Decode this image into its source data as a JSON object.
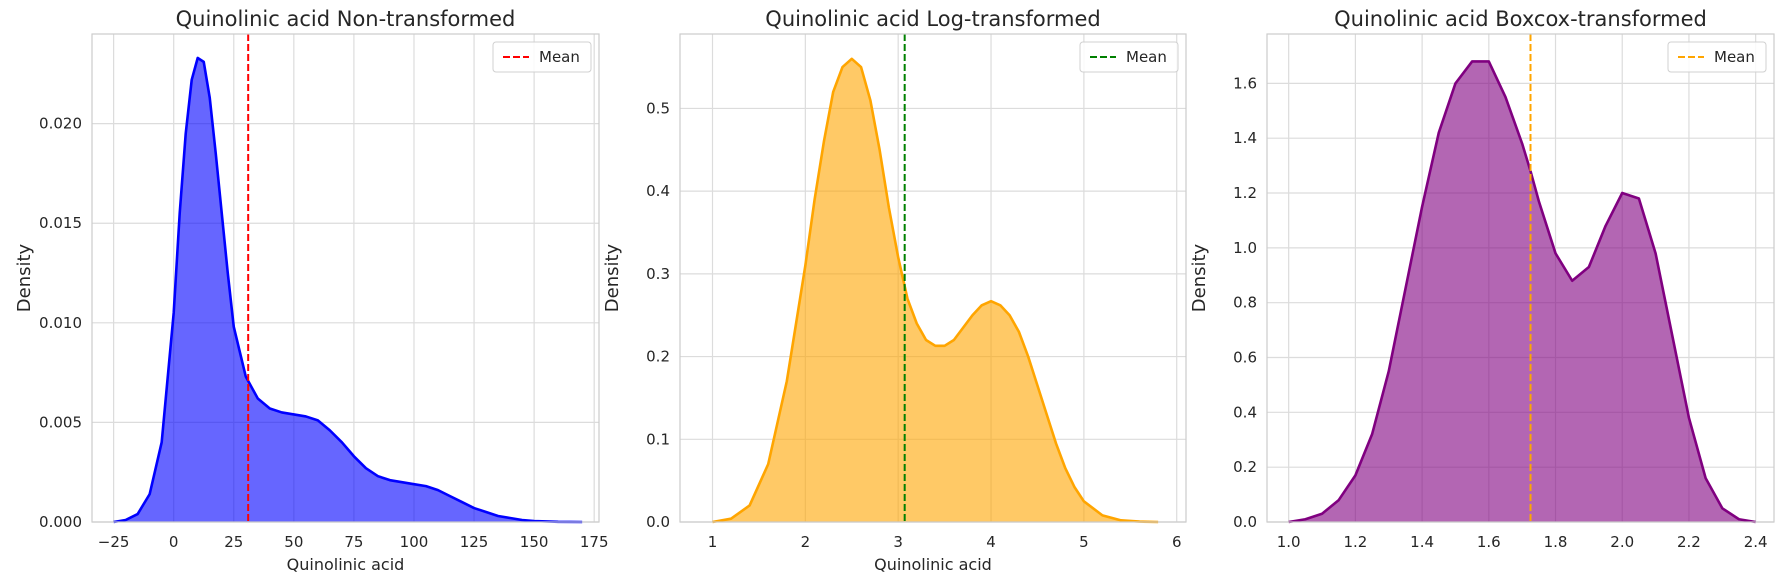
{
  "chart_data": [
    {
      "type": "area",
      "title": "Quinolinic acid Non-transformed",
      "xlabel": "Quinolinic acid",
      "ylabel": "Density",
      "xlim": [
        -34,
        177
      ],
      "ylim": [
        0,
        0.0245
      ],
      "xticks": [
        -25,
        0,
        25,
        50,
        75,
        100,
        125,
        150,
        175
      ],
      "xtick_labels": [
        "−25",
        "0",
        "25",
        "50",
        "75",
        "100",
        "125",
        "150",
        "175"
      ],
      "yticks": [
        0,
        0.005,
        0.01,
        0.015,
        0.02
      ],
      "ytick_labels": [
        "0.000",
        "0.005",
        "0.010",
        "0.015",
        "0.020"
      ],
      "grid": true,
      "legend": "top-right",
      "series": [
        {
          "kind": "kde",
          "color": "#0000ff",
          "x": [
            -25,
            -20,
            -15,
            -10,
            -5,
            0,
            2.5,
            5,
            7.5,
            10,
            12.5,
            15,
            17.5,
            20,
            22.5,
            25,
            30,
            35,
            40,
            45,
            50,
            55,
            60,
            65,
            70,
            75,
            80,
            85,
            90,
            95,
            100,
            105,
            110,
            115,
            120,
            125,
            130,
            135,
            140,
            145,
            150,
            160,
            170
          ],
          "y": [
            0,
            0.0001,
            0.0004,
            0.0014,
            0.004,
            0.0105,
            0.0155,
            0.0195,
            0.0222,
            0.0233,
            0.0231,
            0.0213,
            0.0185,
            0.0155,
            0.0125,
            0.0098,
            0.0073,
            0.0062,
            0.0057,
            0.0055,
            0.0054,
            0.0053,
            0.0051,
            0.0046,
            0.004,
            0.0033,
            0.0027,
            0.0023,
            0.0021,
            0.002,
            0.0019,
            0.0018,
            0.0016,
            0.0013,
            0.001,
            0.0007,
            0.0005,
            0.0003,
            0.0002,
            0.0001,
            5e-05,
            1e-05,
            0
          ]
        }
      ],
      "mean": {
        "label": "Mean",
        "x": 31,
        "color": "#ff0000"
      }
    },
    {
      "type": "area",
      "title": "Quinolinic acid Log-transformed",
      "xlabel": "Quinolinic acid",
      "ylabel": "Density",
      "xlim": [
        0.65,
        6.1
      ],
      "ylim": [
        0,
        0.59
      ],
      "xticks": [
        1,
        2,
        3,
        4,
        5,
        6
      ],
      "xtick_labels": [
        "1",
        "2",
        "3",
        "4",
        "5",
        "6"
      ],
      "yticks": [
        0,
        0.1,
        0.2,
        0.3,
        0.4,
        0.5
      ],
      "ytick_labels": [
        "0.0",
        "0.1",
        "0.2",
        "0.3",
        "0.4",
        "0.5"
      ],
      "grid": true,
      "legend": "top-right",
      "series": [
        {
          "kind": "kde",
          "color": "#ffa500",
          "x": [
            1.0,
            1.2,
            1.4,
            1.6,
            1.8,
            1.9,
            2.0,
            2.1,
            2.2,
            2.3,
            2.4,
            2.5,
            2.6,
            2.7,
            2.8,
            2.9,
            3.0,
            3.1,
            3.2,
            3.3,
            3.4,
            3.5,
            3.6,
            3.7,
            3.8,
            3.9,
            4.0,
            4.1,
            4.2,
            4.3,
            4.4,
            4.5,
            4.6,
            4.7,
            4.8,
            4.9,
            5.0,
            5.2,
            5.4,
            5.6,
            5.8
          ],
          "y": [
            0.0,
            0.004,
            0.02,
            0.07,
            0.17,
            0.24,
            0.31,
            0.39,
            0.46,
            0.52,
            0.55,
            0.56,
            0.55,
            0.51,
            0.45,
            0.38,
            0.32,
            0.27,
            0.24,
            0.22,
            0.213,
            0.213,
            0.22,
            0.235,
            0.25,
            0.262,
            0.267,
            0.262,
            0.25,
            0.23,
            0.2,
            0.165,
            0.13,
            0.095,
            0.065,
            0.042,
            0.025,
            0.008,
            0.002,
            0.0005,
            0.0
          ]
        }
      ],
      "mean": {
        "label": "Mean",
        "x": 3.07,
        "color": "#008000"
      }
    },
    {
      "type": "area",
      "title": "Quinolinic acid Boxcox-transformed",
      "xlabel": "",
      "ylabel": "Density",
      "xlim": [
        0.935,
        2.455
      ],
      "ylim": [
        0,
        1.78
      ],
      "xticks": [
        1.0,
        1.2,
        1.4,
        1.6,
        1.8,
        2.0,
        2.2,
        2.4
      ],
      "xtick_labels": [
        "1.0",
        "1.2",
        "1.4",
        "1.6",
        "1.8",
        "2.0",
        "2.2",
        "2.4"
      ],
      "yticks": [
        0,
        0.2,
        0.4,
        0.6,
        0.8,
        1.0,
        1.2,
        1.4,
        1.6
      ],
      "ytick_labels": [
        "0.0",
        "0.2",
        "0.4",
        "0.6",
        "0.8",
        "1.0",
        "1.2",
        "1.4",
        "1.6"
      ],
      "grid": true,
      "legend": "top-right",
      "series": [
        {
          "kind": "kde",
          "color": "#800080",
          "x": [
            1.0,
            1.05,
            1.1,
            1.15,
            1.2,
            1.25,
            1.3,
            1.35,
            1.4,
            1.45,
            1.5,
            1.55,
            1.6,
            1.65,
            1.7,
            1.725,
            1.75,
            1.8,
            1.85,
            1.9,
            1.95,
            2.0,
            2.05,
            2.1,
            2.15,
            2.2,
            2.25,
            2.3,
            2.35,
            2.4
          ],
          "y": [
            0.0,
            0.01,
            0.03,
            0.08,
            0.17,
            0.32,
            0.55,
            0.85,
            1.15,
            1.42,
            1.6,
            1.68,
            1.68,
            1.55,
            1.38,
            1.28,
            1.17,
            0.98,
            0.88,
            0.93,
            1.08,
            1.2,
            1.18,
            0.98,
            0.68,
            0.38,
            0.16,
            0.05,
            0.01,
            0.0
          ]
        }
      ],
      "mean": {
        "label": "Mean",
        "x": 1.725,
        "color": "#ffa500"
      }
    }
  ]
}
